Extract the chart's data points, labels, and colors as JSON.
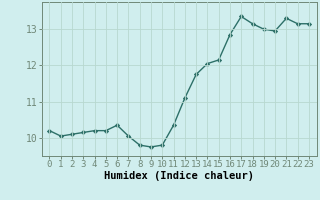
{
  "x": [
    0,
    1,
    2,
    3,
    4,
    5,
    6,
    7,
    8,
    9,
    10,
    11,
    12,
    13,
    14,
    15,
    16,
    17,
    18,
    19,
    20,
    21,
    22,
    23
  ],
  "y": [
    10.2,
    10.05,
    10.1,
    10.15,
    10.2,
    10.2,
    10.35,
    10.05,
    9.8,
    9.75,
    9.8,
    10.35,
    11.1,
    11.75,
    12.05,
    12.15,
    12.85,
    13.35,
    13.15,
    13.0,
    12.95,
    13.3,
    13.15,
    13.15
  ],
  "line_color": "#2d7068",
  "marker": "D",
  "marker_size": 2.2,
  "xlabel": "Humidex (Indice chaleur)",
  "xlabel_fontsize": 7.5,
  "ylim": [
    9.5,
    13.75
  ],
  "yticks": [
    10,
    11,
    12,
    13
  ],
  "xticks": [
    0,
    1,
    2,
    3,
    4,
    5,
    6,
    7,
    8,
    9,
    10,
    11,
    12,
    13,
    14,
    15,
    16,
    17,
    18,
    19,
    20,
    21,
    22,
    23
  ],
  "bg_color": "#d0eeee",
  "grid_color": "#b8d8d0",
  "spine_color": "#708878",
  "linewidth": 1.0,
  "tick_fontsize": 6.5,
  "ytick_fontsize": 7.0
}
